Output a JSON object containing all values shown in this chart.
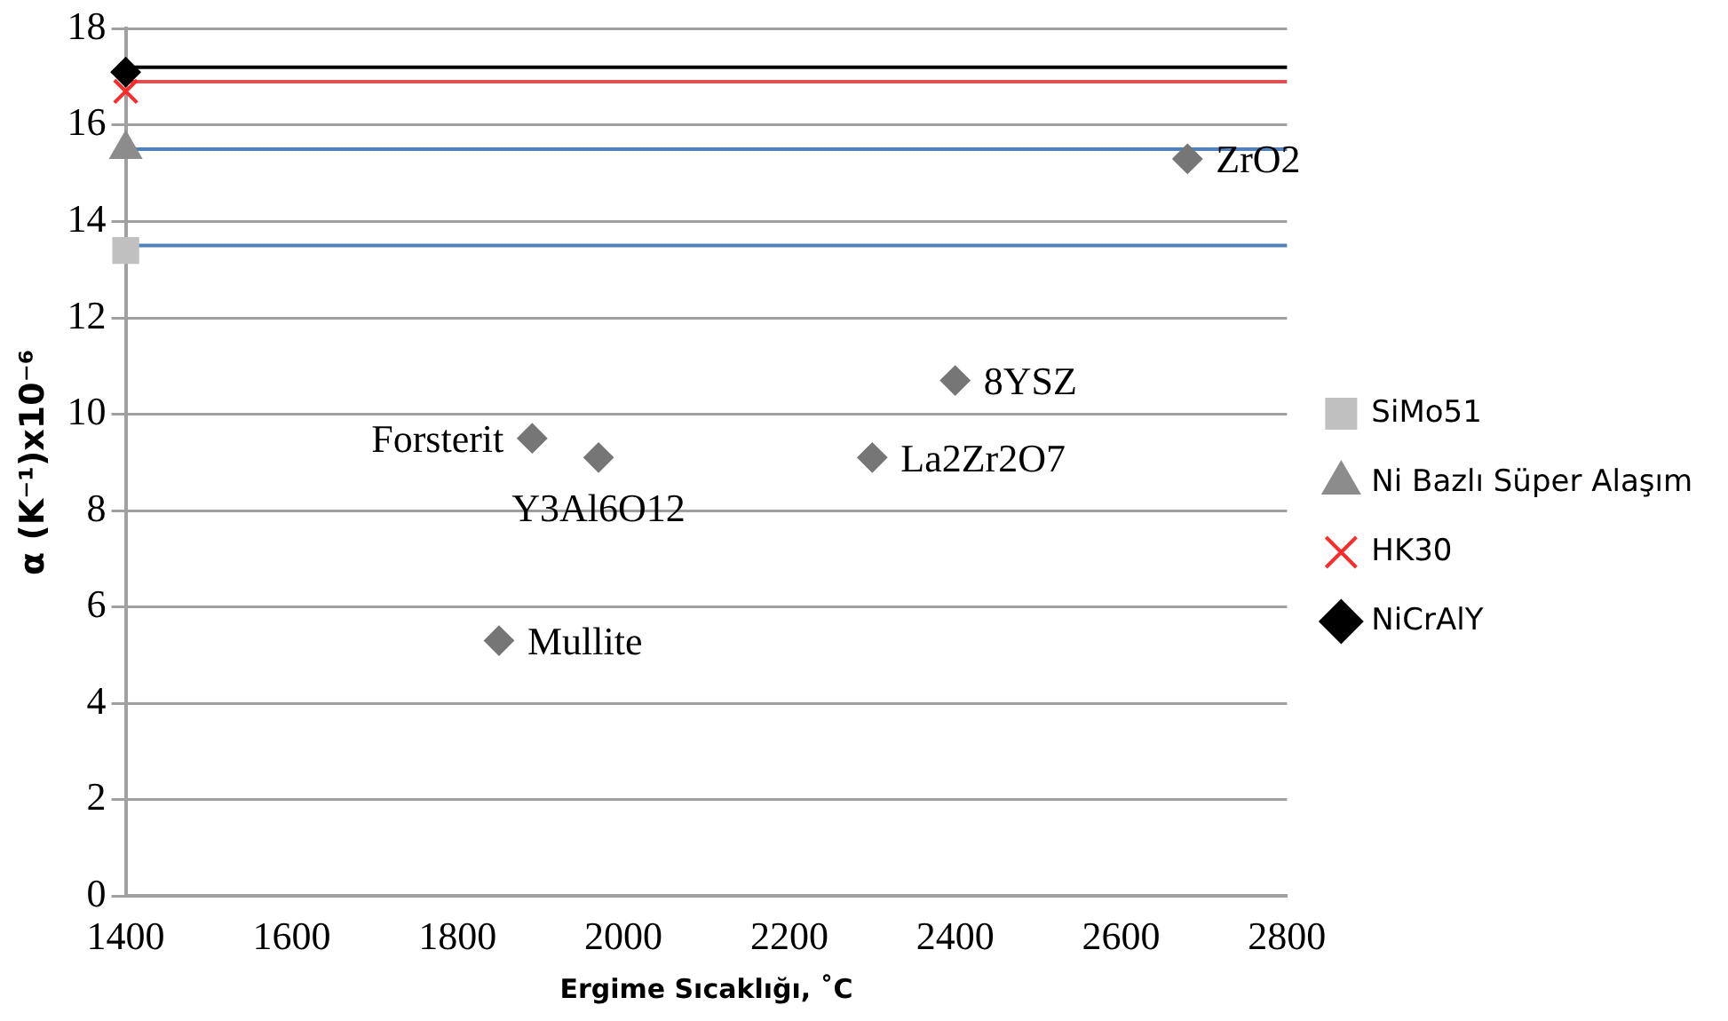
{
  "chart_data": {
    "type": "scatter",
    "xlabel": "Ergime Sıcaklığı, ˚C",
    "ylabel": "α (K⁻¹)x10⁻⁶",
    "xlim": [
      1400,
      2800
    ],
    "xticks": [
      1400,
      1600,
      1800,
      2000,
      2200,
      2400,
      2600,
      2800
    ],
    "ylim": [
      0,
      18
    ],
    "yticks": [
      0,
      2,
      4,
      6,
      8,
      10,
      12,
      14,
      16,
      18
    ],
    "grid": "y",
    "legend": "right",
    "series": [
      {
        "name": "SiMo51",
        "color": "#c0c0c0",
        "marker": "square",
        "x": [
          1400
        ],
        "values": [
          13.4
        ]
      },
      {
        "name": "Ni Bazlı Süper Alaşım",
        "color": "#8c8c8c",
        "marker": "triangle",
        "x": [
          1400
        ],
        "values": [
          15.5
        ]
      },
      {
        "name": "HK30",
        "color": "#ff2a2a",
        "marker": "cross",
        "x": [
          1400
        ],
        "values": [
          16.7
        ]
      },
      {
        "name": "NiCrAlY",
        "color": "#000000",
        "marker": "diamond",
        "x": [
          1400
        ],
        "values": [
          17.1
        ]
      },
      {
        "color": "#767676",
        "marker": "diamond",
        "x": [
          1850,
          1890,
          1970,
          2300,
          2400,
          2680
        ],
        "values": [
          5.3,
          9.5,
          9.1,
          9.1,
          10.7,
          15.3
        ]
      }
    ],
    "ref_lines": [
      {
        "axis": "y",
        "value": 17.2,
        "color": "#000000"
      },
      {
        "axis": "y",
        "value": 16.9,
        "color": "#e05050"
      },
      {
        "axis": "y",
        "value": 15.5,
        "color": "#4f81bd"
      },
      {
        "axis": "y",
        "value": 13.5,
        "color": "#4f81bd"
      }
    ],
    "annotations": [
      {
        "text": "Mullite",
        "x": 1850,
        "y": 5.3
      },
      {
        "text": "Forsterit",
        "x": 1890,
        "y": 9.5
      },
      {
        "text": "Y3Al6O12",
        "x": 1970,
        "y": 9.1
      },
      {
        "text": "La2Zr2O7",
        "x": 2300,
        "y": 9.1
      },
      {
        "text": "8YSZ",
        "x": 2400,
        "y": 10.7
      },
      {
        "text": "ZrO2",
        "x": 2680,
        "y": 15.3
      }
    ]
  }
}
